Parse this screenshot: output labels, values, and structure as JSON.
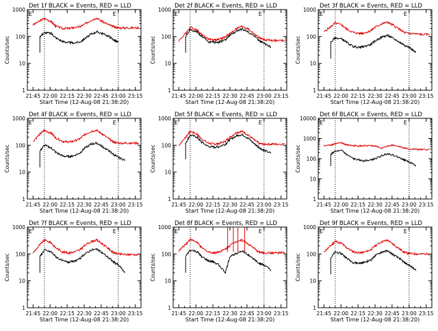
{
  "figure": {
    "background": "#ffffff"
  },
  "shared": {
    "xlabel": "Start Time (12-Aug-08 21:38:20)",
    "ylabel": "Counts/sec",
    "xticks": [
      "21:45",
      "22:00",
      "22:15",
      "22:30",
      "22:45",
      "23:00",
      "23:15"
    ],
    "xtick_minutes": [
      0,
      15,
      30,
      45,
      60,
      75,
      90
    ],
    "marker_label": "E",
    "vertical_line_minutes": [
      10,
      75
    ],
    "series_colors": {
      "events": "#000000",
      "lld": "#e00000"
    }
  },
  "chart_data": [
    {
      "type": "line",
      "title": "Det 1f BLACK = Events, RED = LLD",
      "yscale": "log",
      "ylim": [
        1,
        1000
      ],
      "yticks": [
        "1",
        "10",
        "100",
        "1000"
      ],
      "x_minutes": [
        0,
        6,
        10,
        16,
        20,
        26,
        31,
        35,
        41,
        45,
        51,
        56,
        61,
        67,
        71,
        75,
        81,
        86,
        93
      ],
      "series": [
        {
          "key": "lld",
          "values": [
            270,
            380,
            470,
            360,
            240,
            200,
            200,
            210,
            230,
            280,
            400,
            490,
            360,
            270,
            230,
            210,
            210,
            210,
            210
          ]
        },
        {
          "key": "events",
          "values": [
            null,
            100,
            140,
            130,
            90,
            65,
            60,
            58,
            62,
            80,
            120,
            150,
            130,
            100,
            75,
            60,
            null,
            null,
            null
          ]
        }
      ]
    },
    {
      "type": "line",
      "title": "Det 2f BLACK = Events, RED = LLD",
      "yscale": "log",
      "ylim": [
        1,
        1000
      ],
      "yticks": [
        "1",
        "10",
        "100",
        "1000"
      ],
      "x_minutes": [
        0,
        6,
        10,
        16,
        20,
        26,
        31,
        35,
        41,
        45,
        51,
        56,
        61,
        67,
        71,
        75,
        81,
        86,
        93
      ],
      "series": [
        {
          "key": "lld",
          "values": [
            70,
            130,
            220,
            180,
            120,
            80,
            75,
            78,
            95,
            130,
            200,
            240,
            190,
            120,
            90,
            75,
            72,
            70,
            70
          ]
        },
        {
          "key": "events",
          "values": [
            null,
            100,
            180,
            150,
            100,
            65,
            60,
            62,
            75,
            110,
            160,
            190,
            150,
            100,
            70,
            55,
            40,
            null,
            null
          ]
        }
      ]
    },
    {
      "type": "line",
      "title": "Det 3f BLACK = Events, RED = LLD",
      "yscale": "log",
      "ylim": [
        1,
        1000
      ],
      "yticks": [
        "1",
        "10",
        "100",
        "1000"
      ],
      "x_minutes": [
        0,
        6,
        10,
        16,
        20,
        26,
        31,
        35,
        41,
        45,
        51,
        56,
        61,
        67,
        71,
        75,
        81,
        86,
        93
      ],
      "series": [
        {
          "key": "lld",
          "values": [
            150,
            230,
            320,
            260,
            190,
            140,
            130,
            135,
            160,
            220,
            300,
            340,
            260,
            180,
            140,
            130,
            125,
            120,
            120
          ]
        },
        {
          "key": "events",
          "values": [
            null,
            60,
            90,
            80,
            60,
            42,
            40,
            42,
            50,
            68,
            95,
            110,
            85,
            60,
            48,
            40,
            25,
            null,
            null
          ]
        }
      ]
    },
    {
      "type": "line",
      "title": "Det 4f BLACK = Events, RED = LLD",
      "yscale": "log",
      "ylim": [
        1,
        1000
      ],
      "yticks": [
        "1",
        "10",
        "100",
        "1000"
      ],
      "x_minutes": [
        0,
        6,
        10,
        16,
        20,
        26,
        31,
        35,
        41,
        45,
        51,
        56,
        61,
        67,
        71,
        75,
        81,
        86,
        93
      ],
      "series": [
        {
          "key": "lld",
          "values": [
            140,
            260,
            360,
            280,
            190,
            140,
            130,
            140,
            170,
            240,
            330,
            360,
            260,
            170,
            130,
            120,
            120,
            120,
            120
          ]
        },
        {
          "key": "events",
          "values": [
            null,
            60,
            100,
            80,
            55,
            40,
            38,
            40,
            50,
            75,
            110,
            120,
            90,
            60,
            45,
            35,
            28,
            null,
            null
          ]
        }
      ]
    },
    {
      "type": "line",
      "title": "Det 5f BLACK = Events, RED = LLD",
      "yscale": "log",
      "ylim": [
        1,
        1000
      ],
      "yticks": [
        "1",
        "10",
        "100",
        "1000"
      ],
      "x_minutes": [
        0,
        6,
        10,
        16,
        20,
        26,
        31,
        35,
        41,
        45,
        51,
        56,
        61,
        67,
        71,
        75,
        81,
        86,
        93
      ],
      "series": [
        {
          "key": "lld",
          "values": [
            100,
            200,
            330,
            260,
            170,
            120,
            110,
            115,
            140,
            200,
            300,
            330,
            240,
            150,
            115,
            110,
            110,
            110,
            110
          ]
        },
        {
          "key": "events",
          "values": [
            null,
            120,
            240,
            200,
            130,
            90,
            85,
            88,
            110,
            160,
            230,
            250,
            180,
            110,
            80,
            65,
            50,
            null,
            null
          ]
        }
      ]
    },
    {
      "type": "line",
      "title": "Det 6f BLACK = Events, RED = LLD",
      "yscale": "log",
      "ylim": [
        1,
        10000
      ],
      "yticks": [
        "1",
        "10",
        "100",
        "1000",
        "10000"
      ],
      "x_minutes": [
        0,
        6,
        10,
        16,
        20,
        26,
        31,
        35,
        41,
        45,
        51,
        56,
        61,
        67,
        71,
        75,
        81,
        86,
        93
      ],
      "series": [
        {
          "key": "lld",
          "values": [
            430,
            480,
            550,
            600,
            480,
            440,
            430,
            430,
            430,
            430,
            330,
            420,
            480,
            400,
            330,
            300,
            290,
            280,
            280
          ]
        },
        {
          "key": "events",
          "values": [
            null,
            170,
            230,
            250,
            160,
            100,
            85,
            80,
            85,
            100,
            140,
            180,
            150,
            110,
            85,
            70,
            45,
            null,
            null
          ]
        }
      ]
    },
    {
      "type": "line",
      "title": "Det 7f BLACK = Events, RED = LLD",
      "yscale": "log",
      "ylim": [
        1,
        1000
      ],
      "yticks": [
        "1",
        "10",
        "100",
        "1000"
      ],
      "x_minutes": [
        0,
        6,
        10,
        16,
        20,
        26,
        31,
        35,
        41,
        45,
        51,
        56,
        61,
        67,
        71,
        75,
        81,
        86,
        93
      ],
      "series": [
        {
          "key": "lld",
          "values": [
            110,
            220,
            330,
            260,
            170,
            120,
            110,
            115,
            140,
            200,
            290,
            330,
            240,
            150,
            110,
            100,
            95,
            95,
            95
          ]
        },
        {
          "key": "events",
          "values": [
            null,
            80,
            140,
            120,
            80,
            55,
            50,
            52,
            65,
            95,
            140,
            150,
            110,
            70,
            50,
            40,
            20,
            null,
            null
          ]
        }
      ]
    },
    {
      "type": "line",
      "title": "Det 8f BLACK = Events, RED = LLD",
      "yscale": "log",
      "ylim": [
        1,
        1000
      ],
      "yticks": [
        "1",
        "10",
        "100",
        "1000"
      ],
      "x_minutes": [
        0,
        6,
        10,
        16,
        20,
        26,
        31,
        35,
        41,
        45,
        51,
        56,
        61,
        67,
        71,
        75,
        81,
        86,
        93
      ],
      "series": [
        {
          "key": "lld",
          "values": [
            130,
            230,
            350,
            270,
            170,
            120,
            110,
            120,
            150,
            210,
            300,
            330,
            240,
            150,
            115,
            110,
            110,
            110,
            110
          ]
        },
        {
          "key": "events",
          "values": [
            null,
            80,
            140,
            120,
            80,
            55,
            50,
            40,
            20,
            80,
            110,
            130,
            90,
            60,
            45,
            38,
            25,
            null,
            null
          ]
        }
      ],
      "spikes": [
        {
          "key": "lld",
          "x_minutes": [
            43,
            48,
            52,
            58
          ],
          "peak": 1000
        }
      ]
    },
    {
      "type": "line",
      "title": "Det 9f BLACK = Events, RED = LLD",
      "yscale": "log",
      "ylim": [
        1,
        1000
      ],
      "yticks": [
        "1",
        "10",
        "100",
        "1000"
      ],
      "x_minutes": [
        0,
        6,
        10,
        16,
        20,
        26,
        31,
        35,
        41,
        45,
        51,
        56,
        61,
        67,
        71,
        75,
        81,
        86,
        93
      ],
      "series": [
        {
          "key": "lld",
          "values": [
            120,
            200,
            300,
            240,
            170,
            120,
            110,
            115,
            140,
            200,
            290,
            320,
            230,
            150,
            115,
            105,
            100,
            100,
            100
          ]
        },
        {
          "key": "events",
          "values": [
            null,
            70,
            120,
            100,
            70,
            48,
            45,
            48,
            58,
            85,
            120,
            130,
            95,
            65,
            48,
            38,
            25,
            null,
            null
          ]
        }
      ]
    }
  ]
}
